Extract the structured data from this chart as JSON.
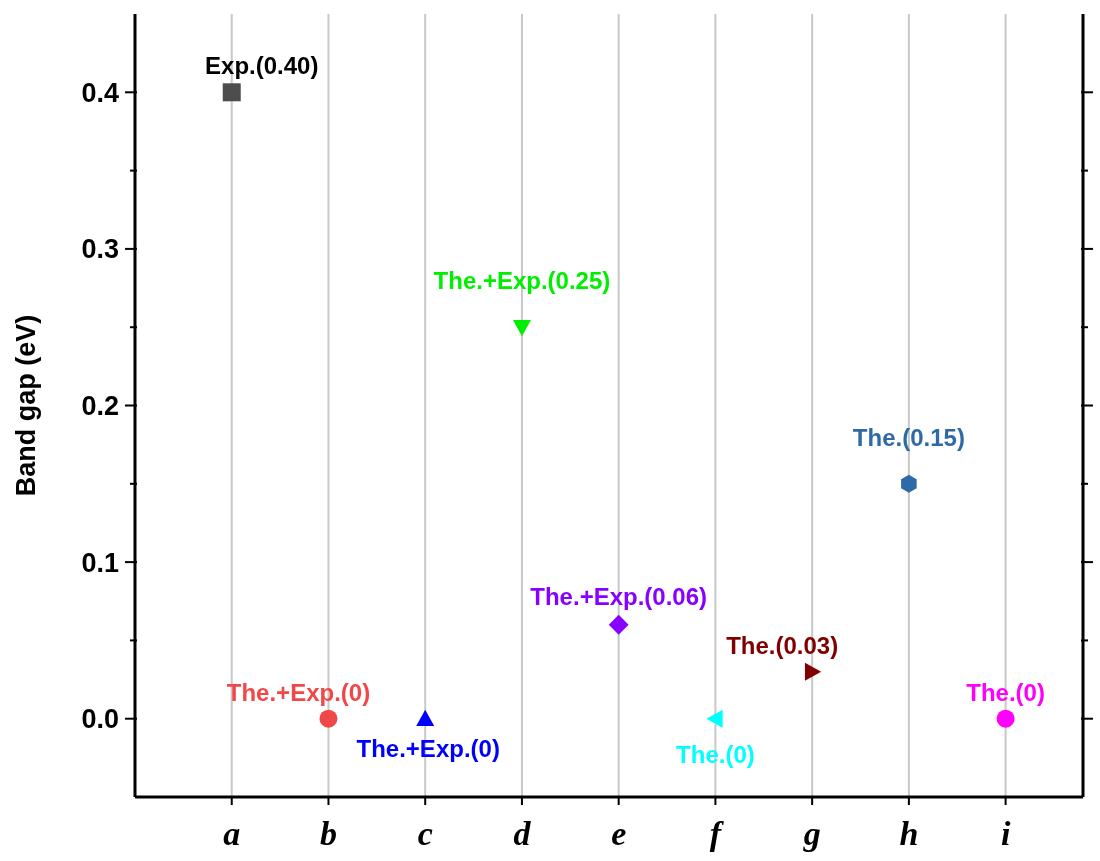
{
  "chart_data": {
    "type": "scatter",
    "ylabel": "Band gap (eV)",
    "categories": [
      "a",
      "b",
      "c",
      "d",
      "e",
      "f",
      "g",
      "h",
      "i"
    ],
    "ylim": [
      -0.05,
      0.45
    ],
    "yticks": [
      {
        "value": 0,
        "label": "0.0"
      },
      {
        "value": 0.1,
        "label": "0.1"
      },
      {
        "value": 0.2,
        "label": "0.2"
      },
      {
        "value": 0.3,
        "label": "0.3"
      },
      {
        "value": 0.4,
        "label": "0.4"
      },
      {
        "value": 0.05,
        "label": null
      },
      {
        "value": 0.15,
        "label": null
      },
      {
        "value": 0.25,
        "label": null
      },
      {
        "value": 0.35,
        "label": null
      }
    ],
    "grid": "x",
    "series": [
      {
        "color": "#4d4d4d",
        "marker": "square",
        "values": [
          0.4,
          null,
          null,
          null,
          null,
          null,
          null,
          null,
          null
        ]
      },
      {
        "color": "#f04848",
        "marker": "circle",
        "values": [
          null,
          0,
          null,
          null,
          null,
          null,
          null,
          null,
          null
        ]
      },
      {
        "color": "#0000ff",
        "marker": "triangle",
        "values": [
          null,
          null,
          0,
          null,
          null,
          null,
          null,
          null,
          null
        ]
      },
      {
        "color": "#00ee00",
        "marker": "triangle-down",
        "values": [
          null,
          null,
          null,
          0.25,
          null,
          null,
          null,
          null,
          null
        ]
      },
      {
        "color": "#8800ff",
        "marker": "diamond",
        "values": [
          null,
          null,
          null,
          null,
          0.06,
          null,
          null,
          null,
          null
        ]
      },
      {
        "color": "#00ffff",
        "marker": "triangle-left",
        "values": [
          null,
          null,
          null,
          null,
          null,
          0,
          null,
          null,
          null
        ]
      },
      {
        "color": "#800000",
        "marker": "triangle-right",
        "values": [
          null,
          null,
          null,
          null,
          null,
          null,
          0.03,
          null,
          null
        ]
      },
      {
        "color": "#2f6aa8",
        "values": [
          null,
          null,
          null,
          null,
          null,
          null,
          null,
          0.15,
          null
        ]
      },
      {
        "color": "#ff00ff",
        "marker": "circle",
        "values": [
          null,
          null,
          null,
          null,
          null,
          null,
          null,
          null,
          0
        ]
      }
    ],
    "annotations": [
      {
        "text": "Exp.(0.40)",
        "x": "a",
        "y": 0.4
      },
      {
        "text": "The.+Exp.(0)",
        "x": "b",
        "y": 0
      },
      {
        "text": "The.+Exp.(0)",
        "x": "c",
        "y": 0
      },
      {
        "text": "The.+Exp.(0.25)",
        "x": "d",
        "y": 0.25
      },
      {
        "text": "The.+Exp.(0.06)",
        "x": "e",
        "y": 0.06
      },
      {
        "text": "The.(0)",
        "x": "f",
        "y": 0
      },
      {
        "text": "The.(0.03)",
        "x": "g",
        "y": 0.03
      },
      {
        "text": "The.(0.15)",
        "x": "h",
        "y": 0.15
      },
      {
        "text": "The.(0)",
        "x": "i",
        "y": 0
      }
    ]
  }
}
